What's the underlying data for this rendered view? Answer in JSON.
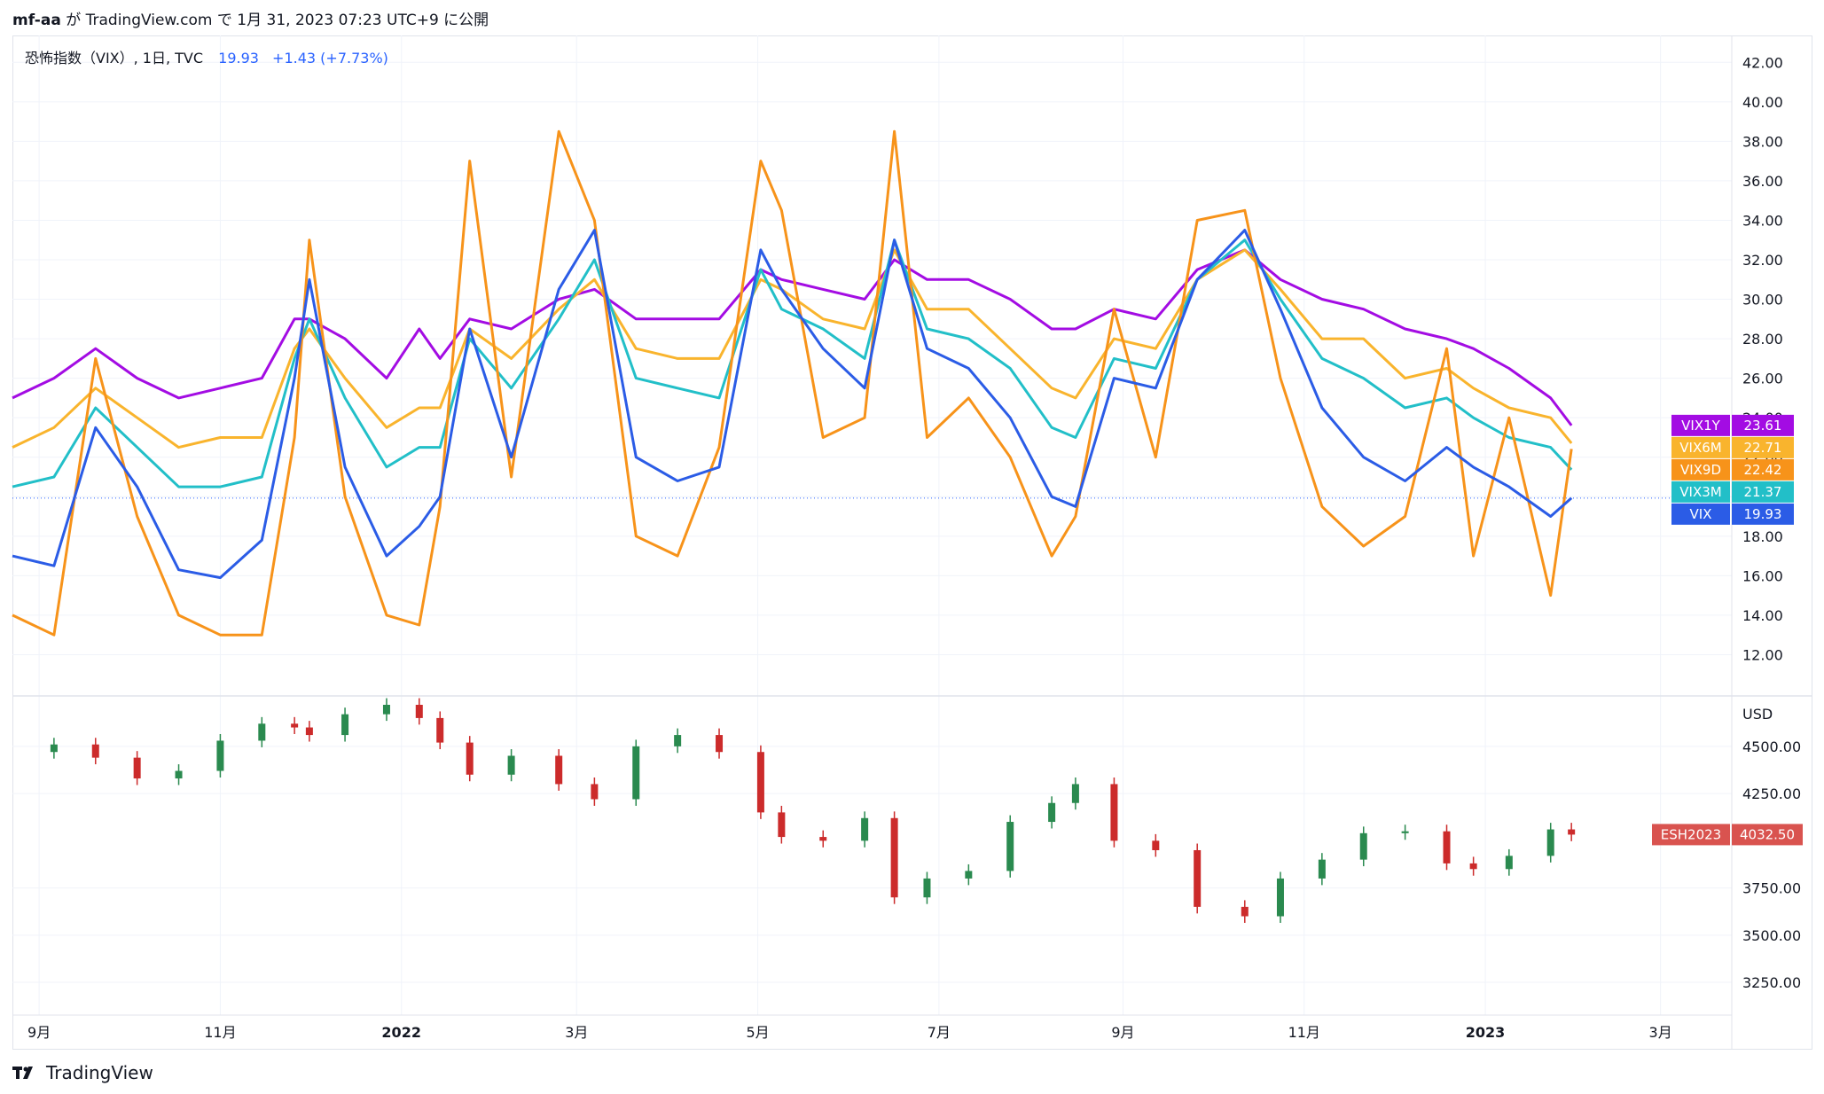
{
  "header": {
    "author": "mf-aa",
    "published_text": "が TradingView.com で 1月 31, 2023 07:23 UTC+9 に公開"
  },
  "legend": {
    "name": "恐怖指数（VIX）, 1日, TVC",
    "value": "19.93",
    "change": "+1.43 (+7.73%)"
  },
  "footer": {
    "brand": "TradingView"
  },
  "colors": {
    "VIX": "#2b5ce6",
    "VIX9D": "#f7931a",
    "VIX3M": "#22bfc8",
    "VIX6M": "#f9b42d",
    "VIX1Y": "#a30ce3",
    "up": "#2a8a4f",
    "down": "#cc2b2b",
    "es_label": "#d9534f"
  },
  "chart_data": [
    {
      "type": "line",
      "title": "恐怖指数（VIX）, 1日, TVC",
      "x_range": [
        "2021-08-23",
        "2023-03-25"
      ],
      "x_ticks": [
        "9月",
        "11月",
        "2022",
        "3月",
        "5月",
        "7月",
        "9月",
        "11月",
        "2023",
        "3月"
      ],
      "x_tick_dates": [
        "2021-09-01",
        "2021-11-01",
        "2022-01-01",
        "2022-03-01",
        "2022-05-01",
        "2022-07-01",
        "2022-09-01",
        "2022-11-01",
        "2023-01-01",
        "2023-03-01"
      ],
      "ylim": [
        10.0,
        43.0
      ],
      "y_ticks": [
        "42.00",
        "40.00",
        "38.00",
        "36.00",
        "34.00",
        "32.00",
        "30.00",
        "28.00",
        "26.00",
        "24.00",
        "22.00",
        "20.00",
        "18.00",
        "16.00",
        "14.00",
        "12.00"
      ],
      "last_values": [
        {
          "name": "VIX1Y",
          "value": "23.61"
        },
        {
          "name": "VIX6M",
          "value": "22.71"
        },
        {
          "name": "VIX9D",
          "value": "22.42"
        },
        {
          "name": "VIX3M",
          "value": "21.37"
        },
        {
          "name": "VIX",
          "value": "19.93"
        }
      ],
      "x": [
        "2021-08-23",
        "2021-09-06",
        "2021-09-20",
        "2021-10-04",
        "2021-10-18",
        "2021-11-01",
        "2021-11-15",
        "2021-11-26",
        "2021-12-01",
        "2021-12-13",
        "2021-12-27",
        "2022-01-07",
        "2022-01-14",
        "2022-01-24",
        "2022-02-07",
        "2022-02-23",
        "2022-03-07",
        "2022-03-21",
        "2022-04-04",
        "2022-04-18",
        "2022-05-02",
        "2022-05-09",
        "2022-05-23",
        "2022-06-06",
        "2022-06-16",
        "2022-06-27",
        "2022-07-11",
        "2022-07-25",
        "2022-08-08",
        "2022-08-16",
        "2022-08-29",
        "2022-09-12",
        "2022-09-26",
        "2022-10-12",
        "2022-10-24",
        "2022-11-07",
        "2022-11-21",
        "2022-12-05",
        "2022-12-19",
        "2022-12-28",
        "2023-01-09",
        "2023-01-23",
        "2023-01-30"
      ],
      "series": [
        {
          "name": "VIX",
          "values": [
            17.0,
            16.5,
            23.5,
            20.5,
            16.3,
            15.9,
            17.8,
            26.0,
            31.0,
            21.5,
            17.0,
            18.5,
            20.0,
            28.5,
            22.0,
            30.5,
            33.5,
            22.0,
            20.8,
            21.5,
            32.5,
            30.5,
            27.5,
            25.5,
            33.0,
            27.5,
            26.5,
            24.0,
            20.0,
            19.5,
            26.0,
            25.5,
            31.0,
            33.5,
            29.5,
            24.5,
            22.0,
            20.8,
            22.5,
            21.5,
            20.5,
            19.0,
            19.93
          ]
        },
        {
          "name": "VIX9D",
          "values": [
            14.0,
            13.0,
            27.0,
            19.0,
            14.0,
            13.0,
            13.0,
            23.0,
            33.0,
            20.0,
            14.0,
            13.5,
            19.5,
            37.0,
            21.0,
            38.5,
            34.0,
            18.0,
            17.0,
            22.5,
            37.0,
            34.5,
            23.0,
            24.0,
            38.5,
            23.0,
            25.0,
            22.0,
            17.0,
            19.0,
            29.5,
            22.0,
            34.0,
            34.5,
            26.0,
            19.5,
            17.5,
            19.0,
            27.5,
            17.0,
            24.0,
            15.0,
            22.42
          ]
        },
        {
          "name": "VIX3M",
          "values": [
            20.5,
            21.0,
            24.5,
            22.5,
            20.5,
            20.5,
            21.0,
            27.0,
            29.0,
            25.0,
            21.5,
            22.5,
            22.5,
            28.0,
            25.5,
            29.0,
            32.0,
            26.0,
            25.5,
            25.0,
            31.5,
            29.5,
            28.5,
            27.0,
            33.0,
            28.5,
            28.0,
            26.5,
            23.5,
            23.0,
            27.0,
            26.5,
            31.0,
            33.0,
            30.0,
            27.0,
            26.0,
            24.5,
            25.0,
            24.0,
            23.0,
            22.5,
            21.37
          ]
        },
        {
          "name": "VIX6M",
          "values": [
            22.5,
            23.5,
            25.5,
            24.0,
            22.5,
            23.0,
            23.0,
            27.5,
            28.5,
            26.0,
            23.5,
            24.5,
            24.5,
            28.5,
            27.0,
            29.5,
            31.0,
            27.5,
            27.0,
            27.0,
            31.0,
            30.5,
            29.0,
            28.5,
            32.5,
            29.5,
            29.5,
            27.5,
            25.5,
            25.0,
            28.0,
            27.5,
            31.0,
            32.5,
            30.5,
            28.0,
            28.0,
            26.0,
            26.5,
            25.5,
            24.5,
            24.0,
            22.71
          ]
        },
        {
          "name": "VIX1Y",
          "values": [
            25.0,
            26.0,
            27.5,
            26.0,
            25.0,
            25.5,
            26.0,
            29.0,
            29.0,
            28.0,
            26.0,
            28.5,
            27.0,
            29.0,
            28.5,
            30.0,
            30.5,
            29.0,
            29.0,
            29.0,
            31.5,
            31.0,
            30.5,
            30.0,
            32.0,
            31.0,
            31.0,
            30.0,
            28.5,
            28.5,
            29.5,
            29.0,
            31.5,
            32.5,
            31.0,
            30.0,
            29.5,
            28.5,
            28.0,
            27.5,
            26.5,
            25.0,
            23.61
          ]
        }
      ]
    },
    {
      "type": "candlestick",
      "series_name": "ESH2023",
      "unit": "USD",
      "last_value": "4032.50",
      "ylim": [
        3100,
        4720
      ],
      "y_ticks": [
        "4500.00",
        "4250.00",
        "3750.00",
        "3500.00",
        "3250.00"
      ],
      "x": [
        "2021-08-23",
        "2021-09-06",
        "2021-09-20",
        "2021-10-04",
        "2021-10-18",
        "2021-11-01",
        "2021-11-15",
        "2021-11-26",
        "2021-12-01",
        "2021-12-13",
        "2021-12-27",
        "2022-01-07",
        "2022-01-14",
        "2022-01-24",
        "2022-02-07",
        "2022-02-23",
        "2022-03-07",
        "2022-03-21",
        "2022-04-04",
        "2022-04-18",
        "2022-05-02",
        "2022-05-09",
        "2022-05-23",
        "2022-06-06",
        "2022-06-16",
        "2022-06-27",
        "2022-07-11",
        "2022-07-25",
        "2022-08-08",
        "2022-08-16",
        "2022-08-29",
        "2022-09-12",
        "2022-09-26",
        "2022-10-12",
        "2022-10-24",
        "2022-11-07",
        "2022-11-21",
        "2022-12-05",
        "2022-12-19",
        "2022-12-28",
        "2023-01-09",
        "2023-01-23",
        "2023-01-30"
      ],
      "values": [
        4470,
        4510,
        4440,
        4330,
        4370,
        4530,
        4620,
        4600,
        4560,
        4670,
        4720,
        4650,
        4520,
        4350,
        4450,
        4300,
        4220,
        4500,
        4560,
        4470,
        4150,
        4020,
        4000,
        4120,
        3700,
        3800,
        3840,
        4100,
        4200,
        4300,
        4000,
        3950,
        3650,
        3600,
        3800,
        3900,
        4040,
        4050,
        3880,
        3850,
        3920,
        4060,
        4032.5
      ]
    }
  ]
}
